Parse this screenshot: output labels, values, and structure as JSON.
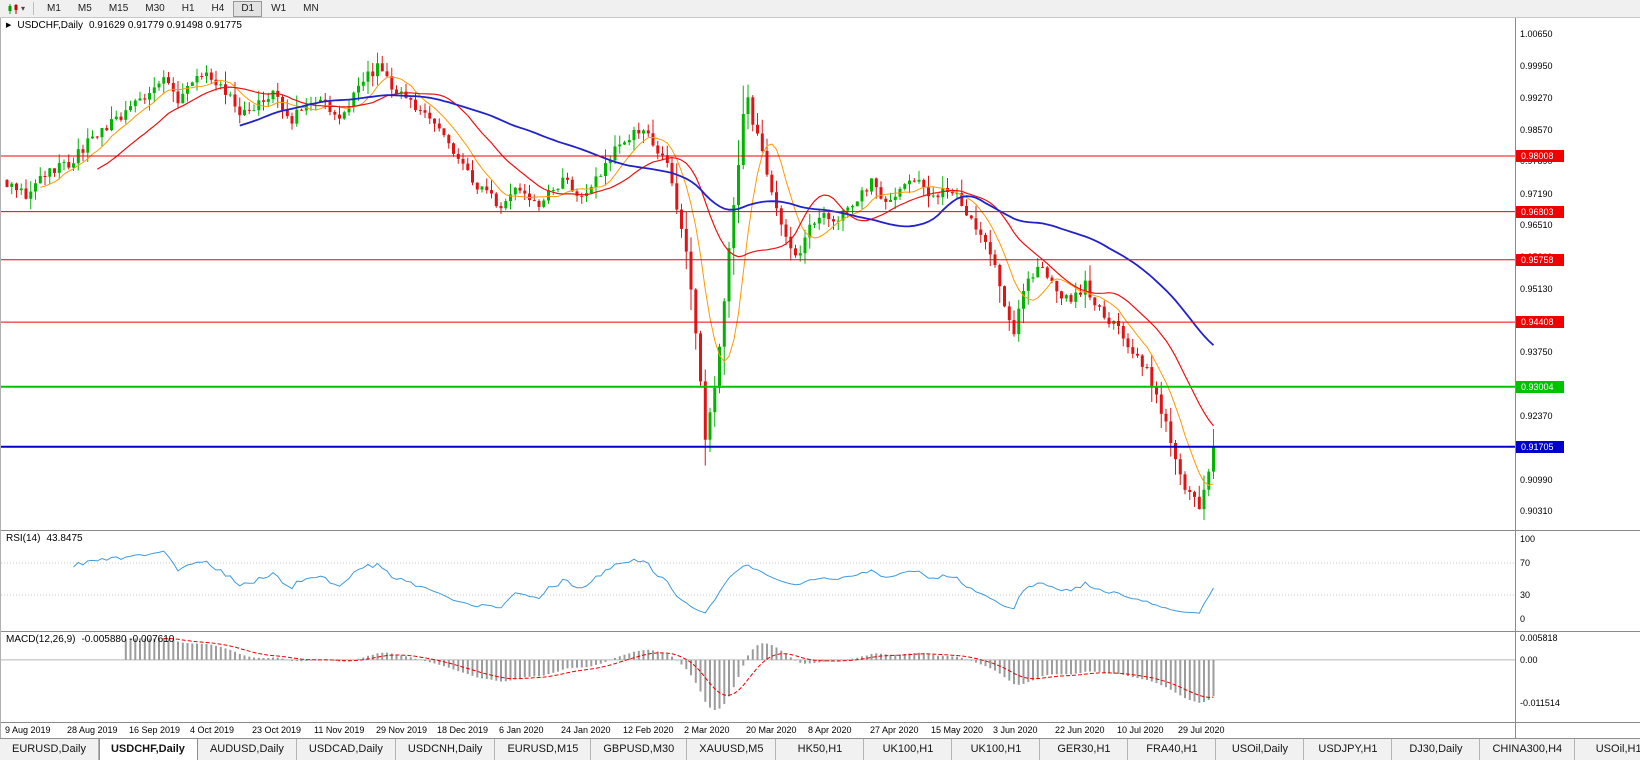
{
  "toolbar": {
    "chart_type_icon": "candlestick-chart-icon",
    "timeframes": [
      {
        "label": "M1",
        "active": false
      },
      {
        "label": "M5",
        "active": false
      },
      {
        "label": "M15",
        "active": false
      },
      {
        "label": "M30",
        "active": false
      },
      {
        "label": "H1",
        "active": false
      },
      {
        "label": "H4",
        "active": false
      },
      {
        "label": "D1",
        "active": true
      },
      {
        "label": "W1",
        "active": false
      },
      {
        "label": "MN",
        "active": false
      }
    ]
  },
  "main_chart_title": {
    "symbol": "USDCHF,Daily",
    "ohlc": "0.91629 0.91779 0.91498 0.91775"
  },
  "rsi_title": {
    "label": "RSI(14)",
    "value": "43.8475"
  },
  "macd_title": {
    "label": "MACD(12,26,9)",
    "values": "-0.005880 -0.007610"
  },
  "tabs": [
    {
      "label": "EURUSD,Daily",
      "active": false
    },
    {
      "label": "USDCHF,Daily",
      "active": true
    },
    {
      "label": "AUDUSD,Daily",
      "active": false
    },
    {
      "label": "USDCAD,Daily",
      "active": false
    },
    {
      "label": "USDCNH,Daily",
      "active": false
    },
    {
      "label": "EURUSD,M15",
      "active": false
    },
    {
      "label": "GBPUSD,M30",
      "active": false
    },
    {
      "label": "XAUUSD,M5",
      "active": false
    },
    {
      "label": "HK50,H1",
      "active": false
    },
    {
      "label": "UK100,H1",
      "active": false
    },
    {
      "label": "UK100,H1",
      "active": false
    },
    {
      "label": "GER30,H1",
      "active": false
    },
    {
      "label": "FRA40,H1",
      "active": false
    },
    {
      "label": "USOil,Daily",
      "active": false
    },
    {
      "label": "USDJPY,H1",
      "active": false
    },
    {
      "label": "DJ30,Daily",
      "active": false
    },
    {
      "label": "CHINA300,H4",
      "active": false
    },
    {
      "label": "USOil,H1",
      "active": false
    }
  ],
  "chart_data": {
    "type": "candlestick",
    "symbol": "USDCHF",
    "timeframe": "Daily",
    "current_ohlc": {
      "open": 0.91629,
      "high": 0.91779,
      "low": 0.91498,
      "close": 0.91775
    },
    "ylim": [
      0.899,
      1.01
    ],
    "y_axis_ticks": [
      "1.00650",
      "0.99950",
      "0.99270",
      "0.98570",
      "0.97890",
      "0.97190",
      "0.96510",
      "0.95810",
      "0.95130",
      "0.94430",
      "0.93750",
      "0.93050",
      "0.92370",
      "0.91670",
      "0.90990",
      "0.90310"
    ],
    "x_labels": [
      "9 Aug 2019",
      "28 Aug 2019",
      "16 Sep 2019",
      "4 Oct 2019",
      "23 Oct 2019",
      "11 Nov 2019",
      "29 Nov 2019",
      "18 Dec 2019",
      "6 Jan 2020",
      "24 Jan 2020",
      "12 Feb 2020",
      "2 Mar 2020",
      "20 Mar 2020",
      "8 Apr 2020",
      "27 Apr 2020",
      "15 May 2020",
      "3 Jun 2020",
      "22 Jun 2020",
      "10 Jul 2020",
      "29 Jul 2020"
    ],
    "candles_per_label": 13,
    "horizontal_levels": [
      {
        "label": "0.98008",
        "price": 0.98008,
        "color": "#f00000",
        "line_width": 1
      },
      {
        "label": "0.96803",
        "price": 0.96803,
        "color": "#f00000",
        "line_width": 1
      },
      {
        "label": "0.95758",
        "price": 0.95758,
        "color": "#f00000",
        "line_width": 1
      },
      {
        "label": "0.94408",
        "price": 0.94408,
        "color": "#f00000",
        "line_width": 1
      },
      {
        "label": "0.93004",
        "price": 0.93004,
        "color": "#00c300",
        "line_width": 2
      },
      {
        "label": "0.91705",
        "price": 0.91705,
        "color": "#0000cd",
        "line_width": 2
      }
    ],
    "colors": {
      "bull": "#00b400",
      "bear": "#e01414"
    },
    "candles_count": 255,
    "noise_seed": 1337,
    "noise_amp": 0.0012,
    "wick_amp": 0.0018,
    "close_waypoints": [
      [
        0,
        0.9745
      ],
      [
        4,
        0.9712
      ],
      [
        8,
        0.9762
      ],
      [
        13,
        0.9782
      ],
      [
        18,
        0.9845
      ],
      [
        22,
        0.9872
      ],
      [
        26,
        0.9902
      ],
      [
        30,
        0.9938
      ],
      [
        33,
        0.9968
      ],
      [
        36,
        0.9925
      ],
      [
        39,
        0.9958
      ],
      [
        42,
        0.9988
      ],
      [
        46,
        0.9938
      ],
      [
        49,
        0.9895
      ],
      [
        52,
        0.9908
      ],
      [
        56,
        0.9938
      ],
      [
        60,
        0.9882
      ],
      [
        65,
        0.9922
      ],
      [
        70,
        0.9892
      ],
      [
        75,
        0.9962
      ],
      [
        78,
        0.9992
      ],
      [
        82,
        0.9942
      ],
      [
        86,
        0.9902
      ],
      [
        91,
        0.9862
      ],
      [
        95,
        0.9802
      ],
      [
        99,
        0.9732
      ],
      [
        104,
        0.9692
      ],
      [
        108,
        0.9732
      ],
      [
        112,
        0.9702
      ],
      [
        117,
        0.9748
      ],
      [
        121,
        0.9712
      ],
      [
        125,
        0.9762
      ],
      [
        130,
        0.9842
      ],
      [
        134,
        0.9856
      ],
      [
        137,
        0.9812
      ],
      [
        139,
        0.9782
      ],
      [
        141,
        0.9692
      ],
      [
        143,
        0.9592
      ],
      [
        145,
        0.9422
      ],
      [
        147,
        0.9192
      ],
      [
        149,
        0.9302
      ],
      [
        151,
        0.9482
      ],
      [
        153,
        0.9702
      ],
      [
        155,
        0.9882
      ],
      [
        156,
        0.9918
      ],
      [
        158,
        0.9842
      ],
      [
        160,
        0.9762
      ],
      [
        163,
        0.9652
      ],
      [
        166,
        0.9582
      ],
      [
        169,
        0.9642
      ],
      [
        172,
        0.9682
      ],
      [
        175,
        0.9656
      ],
      [
        178,
        0.9702
      ],
      [
        182,
        0.9742
      ],
      [
        185,
        0.9692
      ],
      [
        188,
        0.9722
      ],
      [
        191,
        0.9752
      ],
      [
        195,
        0.9712
      ],
      [
        198,
        0.9732
      ],
      [
        201,
        0.9698
      ],
      [
        204,
        0.9652
      ],
      [
        208,
        0.9562
      ],
      [
        210,
        0.9482
      ],
      [
        212,
        0.9425
      ],
      [
        215,
        0.9532
      ],
      [
        218,
        0.9562
      ],
      [
        221,
        0.9512
      ],
      [
        224,
        0.9482
      ],
      [
        227,
        0.9522
      ],
      [
        230,
        0.9472
      ],
      [
        234,
        0.9422
      ],
      [
        237,
        0.9382
      ],
      [
        240,
        0.9332
      ],
      [
        243,
        0.9252
      ],
      [
        245,
        0.9182
      ],
      [
        247,
        0.9102
      ],
      [
        249,
        0.9062
      ],
      [
        251,
        0.9042
      ],
      [
        253,
        0.9122
      ],
      [
        254,
        0.9177
      ]
    ],
    "moving_averages": [
      {
        "period": 8,
        "color": "#ff9900",
        "width": 1
      },
      {
        "period": 20,
        "color": "#ee1111",
        "width": 1.2
      },
      {
        "period": 50,
        "color": "#2222cc",
        "width": 1.8
      }
    ],
    "indicators": {
      "rsi": {
        "period": 14,
        "last": "43.8475",
        "ticks": [
          "100",
          "70",
          "30",
          "0"
        ],
        "line_color": "#3e9ade",
        "level_lines": [
          70,
          30
        ]
      },
      "macd": {
        "fast": 12,
        "slow": 26,
        "signal": 9,
        "last_main": "-0.005880",
        "last_signal": "-0.007610",
        "ticks": [
          "0.005818",
          "0.00",
          "-0.011514"
        ],
        "hist_color": "#9c9c9c",
        "signal_color": "#ee0000"
      }
    }
  }
}
